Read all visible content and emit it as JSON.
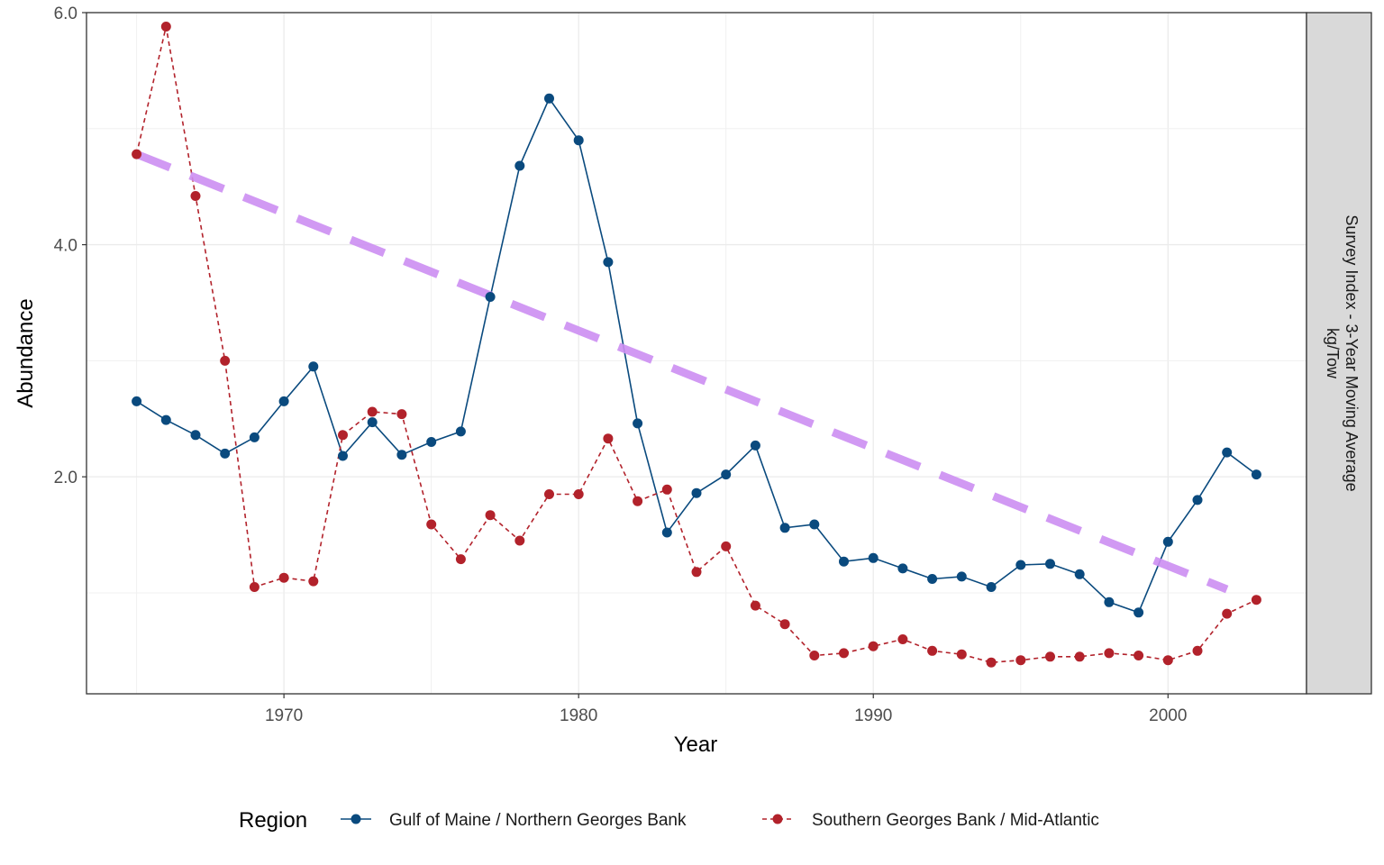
{
  "chart_data": {
    "type": "line",
    "title": "",
    "xlabel": "Year",
    "ylabel": "Abundance",
    "xlim": [
      1963.3,
      2004.7
    ],
    "ylim": [
      0.13,
      6.0
    ],
    "x_ticks": [
      1970,
      1980,
      1990,
      2000
    ],
    "x_tick_labels": [
      "1970",
      "1980",
      "1990",
      "2000"
    ],
    "y_ticks": [
      2.0,
      4.0,
      6.0
    ],
    "y_tick_labels": [
      "2.0",
      "4.0",
      "6.0"
    ],
    "facet_label_lines": [
      "Survey Index - 3-Year Moving Average",
      "kg/Tow"
    ],
    "grid": true,
    "legend": {
      "title": "Region",
      "position": "bottom"
    },
    "x": [
      1965,
      1966,
      1967,
      1968,
      1969,
      1970,
      1971,
      1972,
      1973,
      1974,
      1975,
      1976,
      1977,
      1978,
      1979,
      1980,
      1981,
      1982,
      1983,
      1984,
      1985,
      1986,
      1987,
      1988,
      1989,
      1990,
      1991,
      1992,
      1993,
      1994,
      1995,
      1996,
      1997,
      1998,
      1999,
      2000,
      2001,
      2002,
      2003
    ],
    "series": [
      {
        "name": "Gulf of Maine / Northern Georges Bank",
        "color": "#0a4a7e",
        "dash": "solid",
        "values": [
          2.65,
          2.49,
          2.36,
          2.2,
          2.34,
          2.65,
          2.95,
          2.18,
          2.47,
          2.19,
          2.3,
          2.39,
          3.55,
          4.68,
          5.26,
          4.9,
          3.85,
          2.46,
          1.52,
          1.86,
          2.02,
          2.27,
          1.56,
          1.59,
          1.27,
          1.3,
          1.21,
          1.12,
          1.14,
          1.05,
          1.24,
          1.25,
          1.16,
          0.92,
          0.83,
          1.44,
          1.8,
          2.21,
          2.02
        ]
      },
      {
        "name": "Southern Georges Bank / Mid-Atlantic",
        "color": "#b2222b",
        "dash": "dashed",
        "values": [
          4.78,
          5.88,
          4.42,
          3.0,
          1.05,
          1.13,
          1.1,
          2.36,
          2.56,
          2.54,
          1.59,
          1.29,
          1.67,
          1.45,
          1.85,
          1.85,
          2.33,
          1.79,
          1.89,
          1.18,
          1.4,
          0.89,
          0.73,
          0.46,
          0.48,
          0.54,
          0.6,
          0.5,
          0.47,
          0.4,
          0.42,
          0.45,
          0.45,
          0.48,
          0.46,
          0.42,
          0.5,
          0.82,
          0.94
        ]
      },
      {
        "name": "",
        "color": "#cc8ef2",
        "dash": "long-dash",
        "x": [
          1965,
          2002
        ],
        "values": [
          4.78,
          1.03
        ]
      }
    ]
  }
}
